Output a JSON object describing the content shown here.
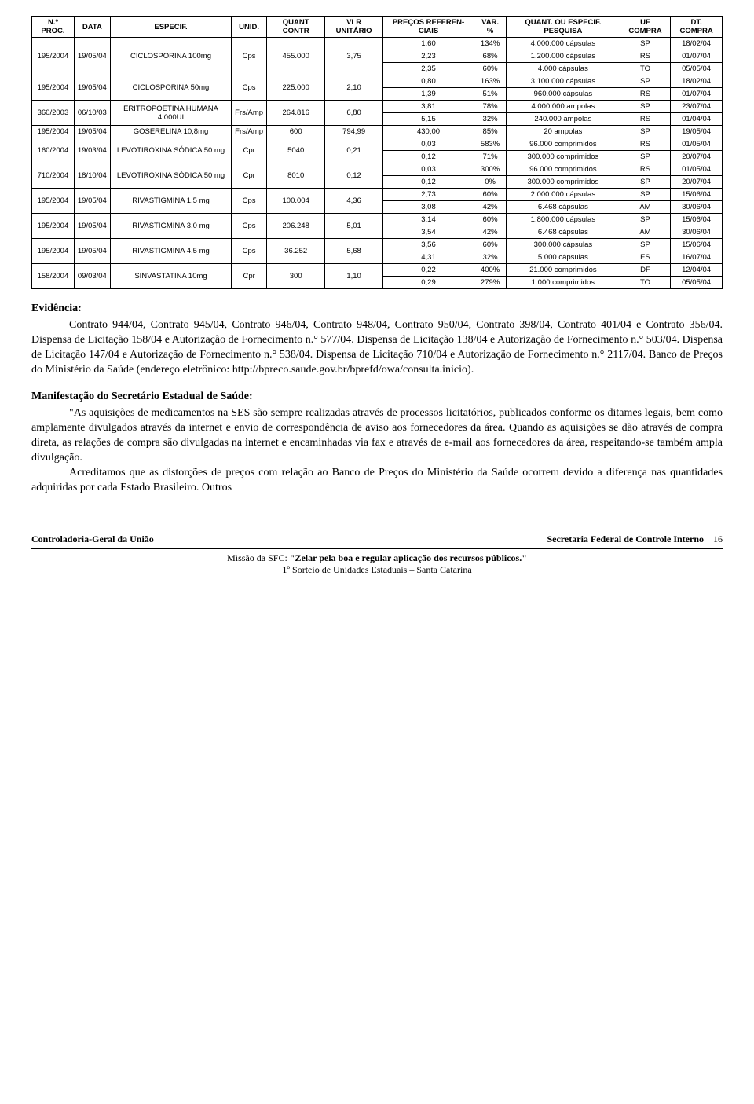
{
  "table": {
    "headers": {
      "c0": "N.º PROC.",
      "c1": "DATA",
      "c2": "ESPECIF.",
      "c3": "UNID.",
      "c4": "QUANT CONTR",
      "c5": "VLR UNITÁRIO",
      "c6": "PREÇOS REFEREN-CIAIS",
      "c7": "VAR. %",
      "c8": "QUANT. OU ESPECIF. PESQUISA",
      "c9": "UF COMPRA",
      "c10": "DT. COMPRA"
    },
    "groups": [
      {
        "proc": "195/2004",
        "data": "19/05/04",
        "espec": "CICLOSPORINA 100mg",
        "unid": "Cps",
        "quant": "455.000",
        "vlr": "3,75",
        "rows": [
          {
            "pr": "1,60",
            "var": "134%",
            "pesq": "4.000.000 cápsulas",
            "uf": "SP",
            "dt": "18/02/04"
          },
          {
            "pr": "2,23",
            "var": "68%",
            "pesq": "1.200.000 cápsulas",
            "uf": "RS",
            "dt": "01/07/04"
          },
          {
            "pr": "2,35",
            "var": "60%",
            "pesq": "4.000 cápsulas",
            "uf": "TO",
            "dt": "05/05/04"
          }
        ]
      },
      {
        "proc": "195/2004",
        "data": "19/05/04",
        "espec": "CICLOSPORINA 50mg",
        "unid": "Cps",
        "quant": "225.000",
        "vlr": "2,10",
        "rows": [
          {
            "pr": "0,80",
            "var": "163%",
            "pesq": "3.100.000 cápsulas",
            "uf": "SP",
            "dt": "18/02/04"
          },
          {
            "pr": "1,39",
            "var": "51%",
            "pesq": "960.000 cápsulas",
            "uf": "RS",
            "dt": "01/07/04"
          }
        ]
      },
      {
        "proc": "360/2003",
        "data": "06/10/03",
        "espec": "ERITROPOETINA HUMANA 4.000UI",
        "unid": "Frs/Amp",
        "quant": "264.816",
        "vlr": "6,80",
        "rows": [
          {
            "pr": "3,81",
            "var": "78%",
            "pesq": "4.000.000 ampolas",
            "uf": "SP",
            "dt": "23/07/04"
          },
          {
            "pr": "5,15",
            "var": "32%",
            "pesq": "240.000 ampolas",
            "uf": "RS",
            "dt": "01/04/04"
          }
        ]
      },
      {
        "proc": "195/2004",
        "data": "19/05/04",
        "espec": "GOSERELINA 10,8mg",
        "unid": "Frs/Amp",
        "quant": "600",
        "vlr": "794,99",
        "rows": [
          {
            "pr": "430,00",
            "var": "85%",
            "pesq": "20 ampolas",
            "uf": "SP",
            "dt": "19/05/04"
          }
        ]
      },
      {
        "proc": "160/2004",
        "data": "19/03/04",
        "espec": "LEVOTIROXINA SÓDICA 50 mg",
        "unid": "Cpr",
        "quant": "5040",
        "vlr": "0,21",
        "rows": [
          {
            "pr": "0,03",
            "var": "583%",
            "pesq": "96.000 comprimidos",
            "uf": "RS",
            "dt": "01/05/04"
          },
          {
            "pr": "0,12",
            "var": "71%",
            "pesq": "300.000 comprimidos",
            "uf": "SP",
            "dt": "20/07/04"
          }
        ]
      },
      {
        "proc": "710/2004",
        "data": "18/10/04",
        "espec": "LEVOTIROXINA SÓDICA 50 mg",
        "unid": "Cpr",
        "quant": "8010",
        "vlr": "0,12",
        "rows": [
          {
            "pr": "0,03",
            "var": "300%",
            "pesq": "96.000 comprimidos",
            "uf": "RS",
            "dt": "01/05/04"
          },
          {
            "pr": "0,12",
            "var": "0%",
            "pesq": "300.000 comprimidos",
            "uf": "SP",
            "dt": "20/07/04"
          }
        ]
      },
      {
        "proc": "195/2004",
        "data": "19/05/04",
        "espec": "RIVASTIGMINA 1,5 mg",
        "unid": "Cps",
        "quant": "100.004",
        "vlr": "4,36",
        "rows": [
          {
            "pr": "2,73",
            "var": "60%",
            "pesq": "2.000.000 cápsulas",
            "uf": "SP",
            "dt": "15/06/04"
          },
          {
            "pr": "3,08",
            "var": "42%",
            "pesq": "6.468 cápsulas",
            "uf": "AM",
            "dt": "30/06/04"
          }
        ]
      },
      {
        "proc": "195/2004",
        "data": "19/05/04",
        "espec": "RIVASTIGMINA 3,0 mg",
        "unid": "Cps",
        "quant": "206.248",
        "vlr": "5,01",
        "rows": [
          {
            "pr": "3,14",
            "var": "60%",
            "pesq": "1.800.000 cápsulas",
            "uf": "SP",
            "dt": "15/06/04"
          },
          {
            "pr": "3,54",
            "var": "42%",
            "pesq": "6.468 cápsulas",
            "uf": "AM",
            "dt": "30/06/04"
          }
        ]
      },
      {
        "proc": "195/2004",
        "data": "19/05/04",
        "espec": "RIVASTIGMINA 4,5 mg",
        "unid": "Cps",
        "quant": "36.252",
        "vlr": "5,68",
        "rows": [
          {
            "pr": "3,56",
            "var": "60%",
            "pesq": "300.000 cápsulas",
            "uf": "SP",
            "dt": "15/06/04"
          },
          {
            "pr": "4,31",
            "var": "32%",
            "pesq": "5.000 cápsulas",
            "uf": "ES",
            "dt": "16/07/04"
          }
        ]
      },
      {
        "proc": "158/2004",
        "data": "09/03/04",
        "espec": "SINVASTATINA 10mg",
        "unid": "Cpr",
        "quant": "300",
        "vlr": "1,10",
        "rows": [
          {
            "pr": "0,22",
            "var": "400%",
            "pesq": "21.000 comprimidos",
            "uf": "DF",
            "dt": "12/04/04"
          },
          {
            "pr": "0,29",
            "var": "279%",
            "pesq": "1.000 comprimidos",
            "uf": "TO",
            "dt": "05/05/04"
          }
        ]
      }
    ]
  },
  "evidencia": {
    "heading": "Evidência:",
    "body": "Contrato 944/04, Contrato 945/04, Contrato 946/04, Contrato 948/04, Contrato 950/04, Contrato 398/04, Contrato 401/04 e Contrato 356/04. Dispensa de Licitação 158/04 e Autorização de Fornecimento n.° 577/04. Dispensa de Licitação 138/04 e Autorização de Fornecimento n.° 503/04. Dispensa de Licitação 147/04 e Autorização de Fornecimento n.° 538/04. Dispensa de Licitação 710/04 e Autorização de Fornecimento n.° 2117/04. Banco de Preços do Ministério da Saúde (endereço eletrônico: http://bpreco.saude.gov.br/bprefd/owa/consulta.inicio)."
  },
  "manifest": {
    "heading": "Manifestação do Secretário Estadual de Saúde:",
    "p1": "\"As aquisições de medicamentos na SES são sempre realizadas através de processos licitatórios, publicados conforme os ditames legais, bem como amplamente divulgados através da internet e envio de correspondência de aviso aos fornecedores da área. Quando as aquisições se dão através de compra direta, as relações de compra são divulgadas na internet e encaminhadas via fax e através de e-mail aos fornecedores da área, respeitando-se também ampla divulgação.",
    "p2": "Acreditamos que as distorções de preços com relação ao Banco de Preços do Ministério da Saúde ocorrem devido a diferença nas quantidades adquiridas por cada Estado Brasileiro. Outros"
  },
  "footer": {
    "left": "Controladoria-Geral da União",
    "right": "Secretaria Federal de Controle Interno",
    "pageno": "16",
    "mission_label": "Missão da SFC:",
    "mission": "\"Zelar pela boa e regular aplicação dos recursos públicos.\"",
    "sub": "1º Sorteio de Unidades Estaduais – Santa Catarina"
  }
}
